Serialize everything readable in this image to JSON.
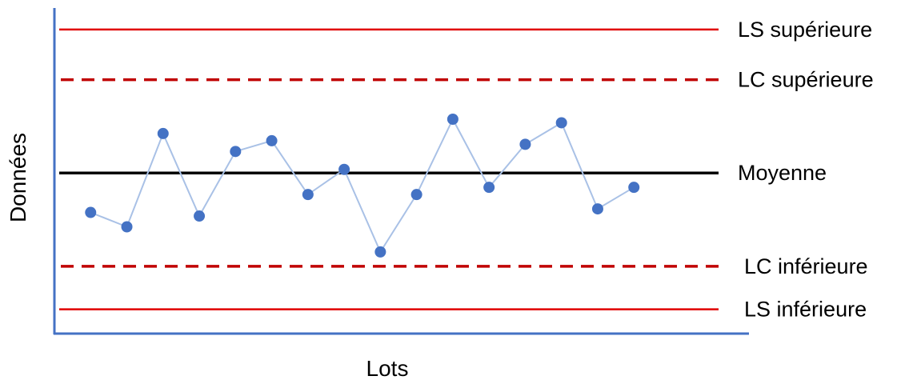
{
  "chart_data": {
    "type": "line",
    "xlabel": "Lots",
    "ylabel": "Données",
    "grid": false,
    "axis_ticks": false,
    "colors": {
      "axis": "#4472c4",
      "points": "#4472c4",
      "connector": "#a9c1e6",
      "spec_limits": "#e00000",
      "control_limits": "#c00000",
      "mean": "#000000"
    },
    "reference_lines": [
      {
        "label": "LS supérieure",
        "value": 40,
        "style": "solid"
      },
      {
        "label": "LC supérieure",
        "value": 26,
        "style": "dashed"
      },
      {
        "label": "Moyenne",
        "value": 0,
        "style": "solid"
      },
      {
        "label": "LC inférieure",
        "value": -26,
        "style": "dashed"
      },
      {
        "label": "LS inférieure",
        "value": -38,
        "style": "solid"
      }
    ],
    "ylim": [
      -45,
      46
    ],
    "xlim": [
      0,
      19
    ],
    "series": [
      {
        "x": [
          1,
          2,
          3,
          4,
          5,
          6,
          7,
          8,
          9,
          10,
          11,
          12,
          13,
          14,
          15,
          16
        ],
        "values": [
          -11,
          -15,
          11,
          -12,
          6,
          9,
          -6,
          1,
          -22,
          -6,
          15,
          -4,
          8,
          14,
          -10,
          -4
        ]
      }
    ]
  }
}
